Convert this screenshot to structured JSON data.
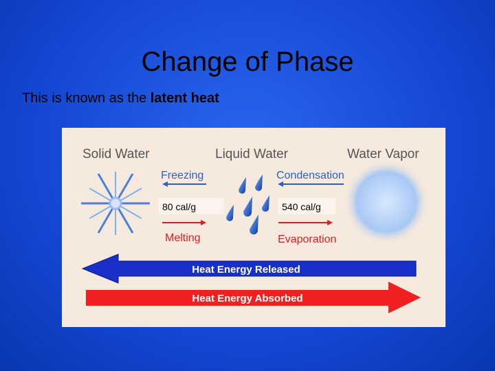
{
  "title": "Change of Phase",
  "subtitle": {
    "lead": "This is known as the ",
    "emphasis": "latent heat"
  },
  "diagram": {
    "states": [
      "Solid Water",
      "Liquid Water",
      "Water Vapor"
    ],
    "freezing": "Freezing",
    "melting": "Melting",
    "condensation": "Condensation",
    "evaporation": "Evaporation",
    "fusion_heat": "80 cal/g",
    "vaporization_heat": "540 cal/g",
    "released": "Heat Energy Released",
    "absorbed": "Heat Energy Absorbed"
  }
}
